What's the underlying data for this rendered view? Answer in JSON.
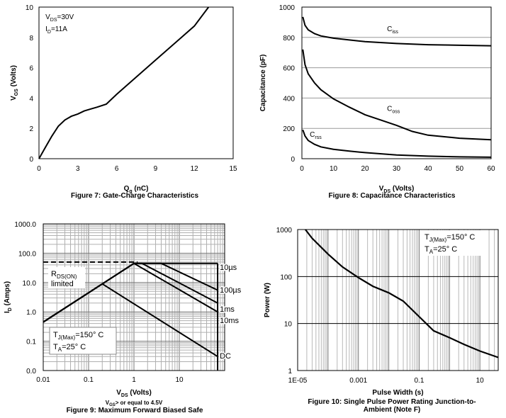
{
  "chart_data": [
    {
      "type": "line",
      "caption": "Figure 7: Gate-Charge Characteristics",
      "xlabel_main": "Q",
      "xlabel_sub": "g",
      "xlabel_unit": " (nC)",
      "ylabel_main": "V",
      "ylabel_sub": "GS",
      "ylabel_unit": " (Volts)",
      "xlim": [
        0,
        15
      ],
      "ylim": [
        0,
        10
      ],
      "xticks": [
        0,
        3,
        6,
        9,
        12,
        15
      ],
      "yticks": [
        0,
        2,
        4,
        6,
        8,
        10
      ],
      "annotations": [
        {
          "main": "V",
          "sub": "DS",
          "rest": "=30V",
          "x": 0.5,
          "y": 9.2
        },
        {
          "main": "I",
          "sub": "D",
          "rest": "=11A",
          "x": 0.5,
          "y": 8.4
        }
      ],
      "series": [
        {
          "x": [
            0,
            0.5,
            1.0,
            1.5,
            2.0,
            2.5,
            3.0,
            3.5,
            4.0,
            4.5,
            5.2,
            6.0,
            9.0,
            12.0,
            13.1
          ],
          "y": [
            0,
            0.75,
            1.5,
            2.15,
            2.55,
            2.8,
            2.95,
            3.15,
            3.28,
            3.4,
            3.6,
            4.25,
            6.5,
            8.75,
            10.0
          ]
        }
      ]
    },
    {
      "type": "line",
      "caption": "Figure 8: Capacitance Characteristics",
      "xlabel_main": "V",
      "xlabel_sub": "DS",
      "xlabel_unit": " (Volts)",
      "ylabel": "Capacitance (pF)",
      "xlim": [
        0,
        60
      ],
      "ylim": [
        0,
        1000
      ],
      "xticks": [
        0,
        10,
        20,
        30,
        40,
        50,
        60
      ],
      "yticks": [
        0,
        200,
        400,
        600,
        800,
        1000
      ],
      "series": [
        {
          "name": "iss",
          "label_main": "C",
          "label_sub": "iss",
          "label_x": 27,
          "label_y": 840,
          "x": [
            0.3,
            1,
            2,
            4,
            6,
            10,
            15,
            20,
            30,
            40,
            50,
            60
          ],
          "y": [
            935,
            880,
            850,
            825,
            810,
            795,
            783,
            772,
            760,
            752,
            748,
            745
          ]
        },
        {
          "name": "oss",
          "label_main": "C",
          "label_sub": "oss",
          "label_x": 27,
          "label_y": 315,
          "x": [
            0.3,
            1,
            2,
            4,
            6,
            10,
            15,
            20,
            25,
            30,
            35,
            40,
            50,
            60
          ],
          "y": [
            720,
            620,
            560,
            500,
            455,
            395,
            340,
            290,
            255,
            220,
            180,
            155,
            135,
            125
          ]
        },
        {
          "name": "rss",
          "label_main": "C",
          "label_sub": "rss",
          "label_x": 2.5,
          "label_y": 145,
          "x": [
            0.3,
            1,
            2,
            4,
            6,
            10,
            15,
            20,
            30,
            40,
            50,
            60
          ],
          "y": [
            190,
            150,
            120,
            95,
            78,
            62,
            50,
            40,
            25,
            17,
            12,
            10
          ]
        }
      ]
    },
    {
      "type": "line",
      "caption": "Figure 9: Maximum Forward Biased Safe",
      "xscale": "log",
      "yscale": "log",
      "xlabel_main": "V",
      "xlabel_sub": "DS",
      "xlabel_unit": " (Volts)",
      "ylabel_main": "I",
      "ylabel_sub": "D",
      "ylabel_unit": " (Amps)",
      "xlim": [
        0.01,
        100
      ],
      "ylim": [
        0.0,
        1000.0
      ],
      "xticks": [
        0.01,
        0.1,
        1,
        10
      ],
      "xticklabels": [
        "0.01",
        "0.1",
        "1",
        "10"
      ],
      "yticks": [
        1000,
        100,
        10,
        1,
        0.1,
        0.0
      ],
      "yticklabels": [
        "1000.0",
        "100.0",
        "10.0",
        "1.0",
        "0.1",
        "0.0"
      ],
      "note_main": "V",
      "note_sub": "GS",
      "note_rest": "> or equal to 4.5V",
      "rds_main": "R",
      "rds_sub": "DS(ON)",
      "rds_line2": "limited",
      "tj_main": "T",
      "tj_sub": "J(Max)",
      "tj_rest": "=150° C",
      "ta_main": "T",
      "ta_sub": "A",
      "ta_rest": "=25° C",
      "current_limit_dashed": {
        "x": [
          0.01,
          1.2
        ],
        "y": [
          50,
          50
        ]
      },
      "series": [
        {
          "name": "10µs",
          "label": "10µs",
          "x": [
            0.01,
            1.0,
            70
          ],
          "y": [
            0.45,
            45,
            45
          ]
        },
        {
          "name": "100µs",
          "label": "100µs",
          "x": [
            0.01,
            1.0,
            4.0,
            70
          ],
          "y": [
            0.45,
            45,
            45,
            5.5
          ]
        },
        {
          "name": "1ms",
          "label": "1ms",
          "x": [
            0.01,
            1.0,
            1.5,
            70
          ],
          "y": [
            0.45,
            45,
            45,
            2.0
          ]
        },
        {
          "name": "10ms",
          "label": "10ms",
          "x": [
            0.01,
            1.0,
            70
          ],
          "y": [
            0.45,
            45,
            1.0
          ]
        },
        {
          "name": "DC",
          "label": "DC",
          "x": [
            0.01,
            0.2,
            70
          ],
          "y": [
            0.45,
            9.0,
            0.03
          ]
        }
      ],
      "vertical_limit": {
        "x": 70,
        "y": [
          0.0,
          45
        ]
      }
    },
    {
      "type": "line",
      "caption_line1": "Figure 10: Single Pulse Power Rating Junction-to-",
      "caption_line2": "Ambient (Note F)",
      "xscale": "log",
      "yscale": "log",
      "xlabel": "Pulse Width (s)",
      "ylabel": "Power (W)",
      "xlim": [
        1e-05,
        40
      ],
      "ylim": [
        1,
        1000
      ],
      "xticks": [
        1e-05,
        0.001,
        0.1,
        10
      ],
      "xticklabels": [
        "1E-05",
        "0.001",
        "0.1",
        "10"
      ],
      "yticks": [
        1000,
        100,
        10,
        1
      ],
      "yticklabels": [
        "1000",
        "100",
        "10",
        "1"
      ],
      "tj_main": "T",
      "tj_sub": "J(Max)",
      "tj_rest": "=150° C",
      "ta_main": "T",
      "ta_sub": "A",
      "ta_rest": "=25° C",
      "series": [
        {
          "x": [
            1.8e-05,
            3e-05,
            0.0001,
            0.0003,
            0.001,
            0.003,
            0.01,
            0.03,
            0.1,
            0.3,
            1,
            3,
            10,
            40
          ],
          "y": [
            1000,
            650,
            300,
            160,
            95,
            62,
            45,
            30,
            14,
            7,
            5,
            3.6,
            2.6,
            1.9
          ]
        }
      ]
    }
  ]
}
